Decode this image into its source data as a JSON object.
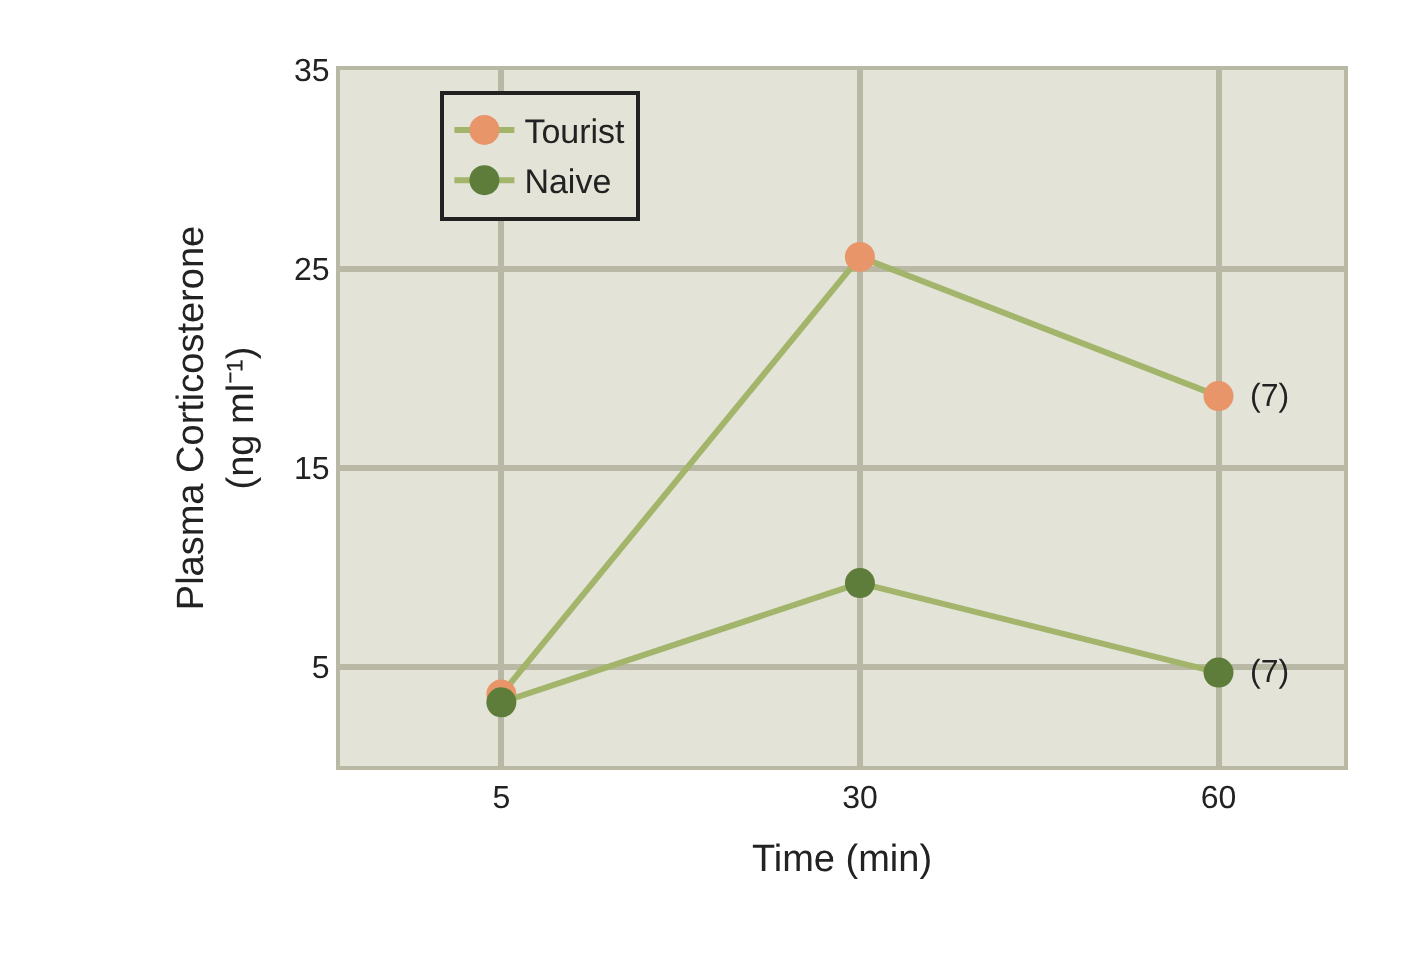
{
  "chart_data": {
    "type": "line",
    "xlabel": "Time (min)",
    "ylabel": "Plasma Corticosterone\n(ng ml⁻¹)",
    "categories": [
      "5",
      "30",
      "60"
    ],
    "series": [
      {
        "name": "Tourist",
        "color": "#e8956a",
        "values": [
          3.6,
          25.6,
          18.6
        ]
      },
      {
        "name": "Naive",
        "color": "#5e7d3a",
        "values": [
          3.2,
          9.2,
          4.7
        ]
      }
    ],
    "ylim": [
      0,
      35
    ],
    "yticks": [
      5,
      15,
      25,
      35
    ],
    "grid": true,
    "legend": "top left",
    "marker": "circle",
    "line_style": "solid",
    "annotations": [
      {
        "text": "(7)",
        "x": "60",
        "y": 18.6
      },
      {
        "text": "(7)",
        "x": "60",
        "y": 4.7
      }
    ]
  }
}
